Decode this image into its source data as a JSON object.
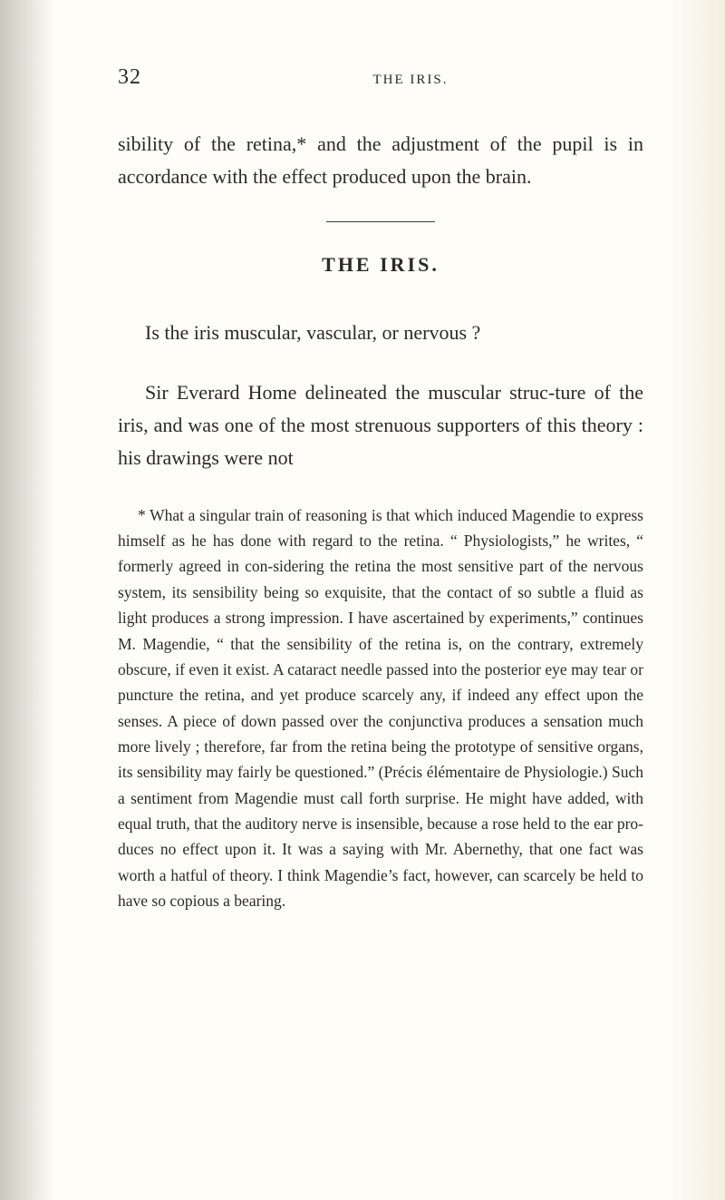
{
  "page": {
    "number": "32",
    "running_head": "THE IRIS."
  },
  "body": {
    "para1": "sibility of the retina,* and the adjustment of the pupil is in accordance with the effect produced upon the brain.",
    "section_heading": "THE IRIS.",
    "para2": "Is the iris muscular, vascular, or nervous ?",
    "para3": "Sir Everard Home delineated the muscular struc-ture of the iris, and was one of the most strenuous supporters of this theory : his drawings were not"
  },
  "footnote": {
    "text": "* What a singular train of reasoning is that which induced Magendie to express himself as he has done with regard to the retina. “ Physiologists,” he writes, “ formerly agreed in con-sidering the retina the most sensitive part of the nervous system, its sensibility being so exquisite, that the contact of so subtle a fluid as light produces a strong impression. I have ascertained by experiments,” continues M. Magendie, “ that the sensibility of the retina is, on the contrary, extremely obscure, if even it exist. A cataract needle passed into the posterior eye may tear or puncture the retina, and yet produce scarcely any, if indeed any effect upon the senses. A piece of down passed over the conjunctiva produces a sensation much more lively ; therefore, far from the retina being the prototype of sensitive organs, its sensibility may fairly be questioned.” (Précis élémentaire de Physiologie.) Such a sentiment from Magendie must call forth surprise. He might have added, with equal truth, that the auditory nerve is insensible, because a rose held to the ear pro-duces no effect upon it. It was a saying with Mr. Abernethy, that one fact was worth a hatful of theory. I think Magendie’s fact, however, can scarcely be held to have so copious a bearing."
  }
}
